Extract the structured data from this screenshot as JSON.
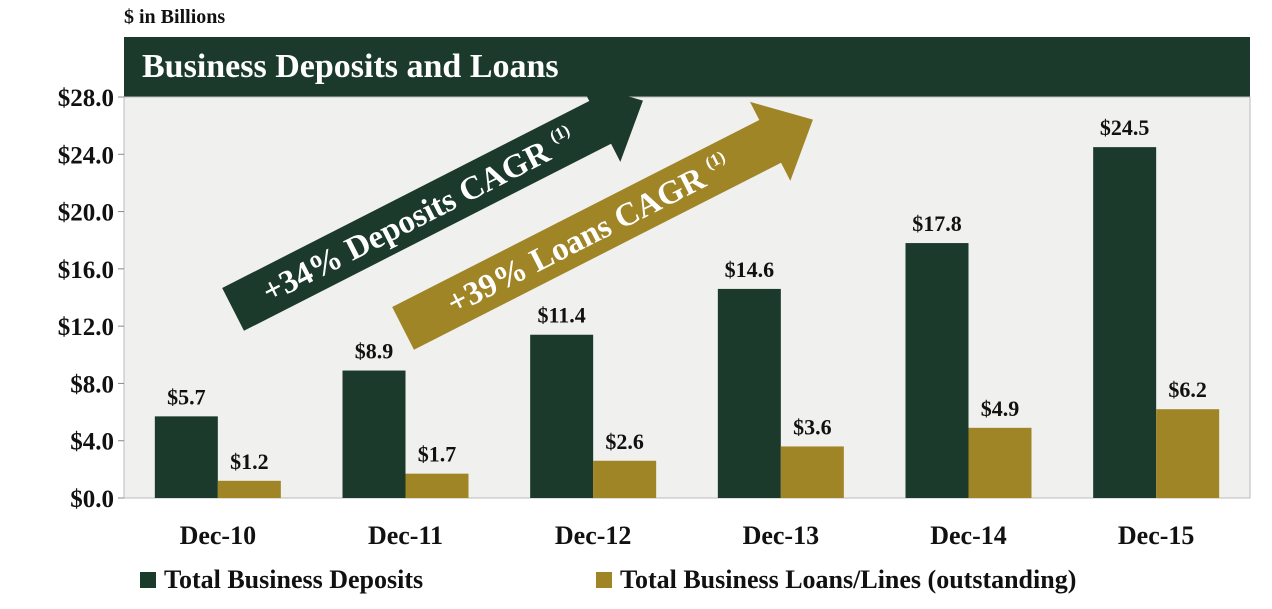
{
  "units_label": "$ in Billions",
  "colors": {
    "title_bg": "#1b3a2b",
    "deposits": "#1b3a2b",
    "loans": "#a08526",
    "plot_bg": "#f0f0ee"
  },
  "annotations": {
    "deposits_cagr": "+34% Deposits CAGR",
    "loans_cagr": "+39% Loans CAGR",
    "footnote_marker": "(1)"
  },
  "chart_data": {
    "type": "bar",
    "title": "Business Deposits and Loans",
    "categories": [
      "Dec-10",
      "Dec-11",
      "Dec-12",
      "Dec-13",
      "Dec-14",
      "Dec-15"
    ],
    "series": [
      {
        "name": "Total Business Deposits",
        "values": [
          5.7,
          8.9,
          11.4,
          14.6,
          17.8,
          24.5
        ],
        "labels": [
          "$5.7",
          "$8.9",
          "$11.4",
          "$14.6",
          "$17.8",
          "$24.5"
        ]
      },
      {
        "name": "Total Business Loans/Lines (outstanding)",
        "values": [
          1.2,
          1.7,
          2.6,
          3.6,
          4.9,
          6.2
        ],
        "labels": [
          "$1.2",
          "$1.7",
          "$2.6",
          "$3.6",
          "$4.9",
          "$6.2"
        ]
      }
    ],
    "ylim": [
      0,
      28
    ],
    "yticks": [
      0,
      4,
      8,
      12,
      16,
      20,
      24,
      28
    ],
    "ytick_labels": [
      "$0.0",
      "$4.0",
      "$8.0",
      "$12.0",
      "$16.0",
      "$20.0",
      "$24.0",
      "$28.0"
    ],
    "xlabel": "",
    "ylabel": "",
    "legend_position": "bottom",
    "grid": false
  }
}
